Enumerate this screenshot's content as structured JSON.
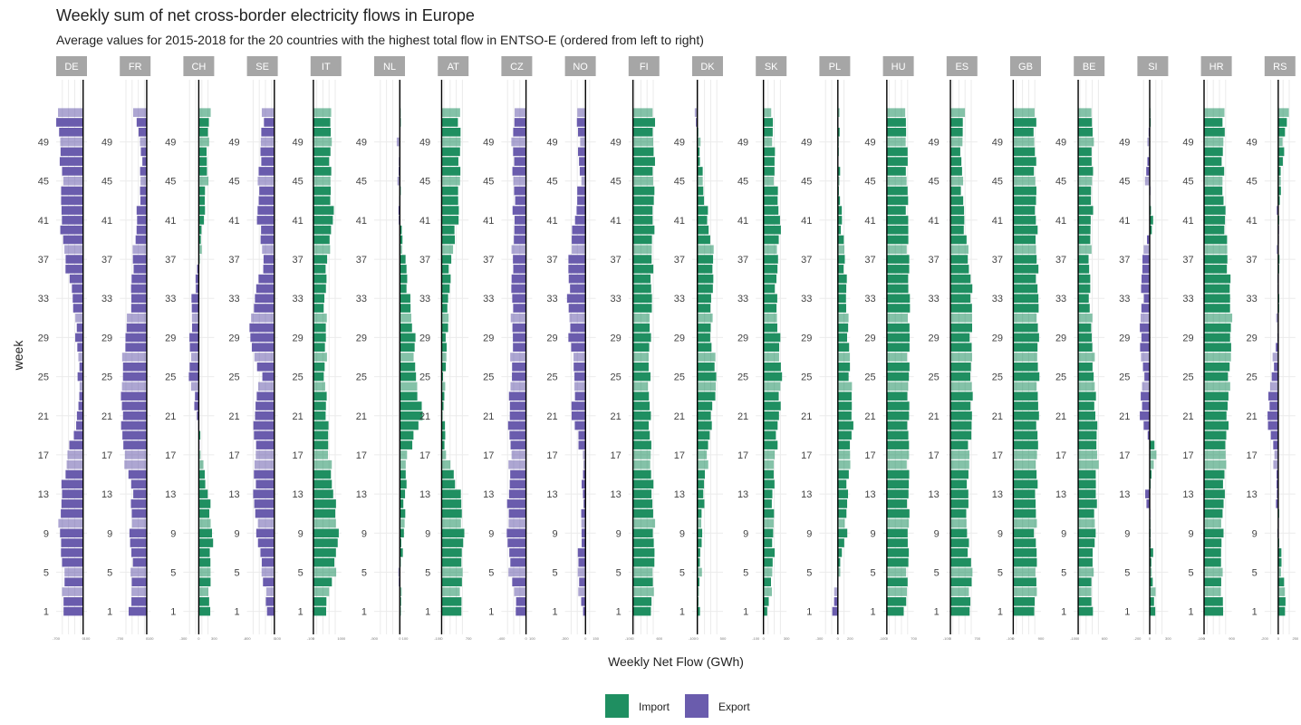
{
  "chart_data": {
    "type": "bar",
    "orientation": "horizontal",
    "title": "Weekly sum of net cross-border electricity flows in Europe",
    "subtitle": "Average values for 2015-2018 for the 20 countries with the highest total flow in ENTSO-E (ordered from left to right)",
    "xlabel": "Weekly Net Flow (GWh)",
    "ylabel": "week",
    "y_ticks": [
      1,
      5,
      9,
      13,
      17,
      21,
      25,
      29,
      33,
      37,
      41,
      45,
      49
    ],
    "weeks": [
      1,
      53
    ],
    "legend": [
      {
        "name": "Import",
        "color": "#1f8f61"
      },
      {
        "name": "Export",
        "color": "#6a5cad"
      }
    ],
    "legend_position": "bottom",
    "grid": true,
    "panels": [
      {
        "label": "DE",
        "xlim": [
          -700,
          100
        ],
        "profile": [
          [
            1,
            -520
          ],
          [
            5,
            -500
          ],
          [
            9,
            -620
          ],
          [
            13,
            -560
          ],
          [
            17,
            -400
          ],
          [
            21,
            -130
          ],
          [
            25,
            -100
          ],
          [
            29,
            -170
          ],
          [
            33,
            -260
          ],
          [
            37,
            -470
          ],
          [
            41,
            -580
          ],
          [
            45,
            -540
          ],
          [
            49,
            -610
          ],
          [
            52,
            -680
          ]
        ]
      },
      {
        "label": "FR",
        "xlim": [
          -700,
          100
        ],
        "profile": [
          [
            1,
            -430
          ],
          [
            5,
            -380
          ],
          [
            9,
            -430
          ],
          [
            13,
            -360
          ],
          [
            17,
            -600
          ],
          [
            21,
            -650
          ],
          [
            25,
            -640
          ],
          [
            29,
            -560
          ],
          [
            33,
            -400
          ],
          [
            37,
            -360
          ],
          [
            41,
            -250
          ],
          [
            45,
            -150
          ],
          [
            49,
            -150
          ],
          [
            52,
            -350
          ]
        ]
      },
      {
        "label": "CH",
        "xlim": [
          -300,
          300
        ],
        "profile": [
          [
            1,
            200
          ],
          [
            5,
            220
          ],
          [
            9,
            260
          ],
          [
            13,
            180
          ],
          [
            17,
            40
          ],
          [
            21,
            -30
          ],
          [
            25,
            -180
          ],
          [
            29,
            -160
          ],
          [
            33,
            -120
          ],
          [
            37,
            10
          ],
          [
            41,
            90
          ],
          [
            45,
            160
          ],
          [
            49,
            170
          ],
          [
            52,
            230
          ]
        ]
      },
      {
        "label": "SE",
        "xlim": [
          -800,
          100
        ],
        "profile": [
          [
            1,
            -200
          ],
          [
            5,
            -350
          ],
          [
            9,
            -500
          ],
          [
            13,
            -600
          ],
          [
            17,
            -550
          ],
          [
            21,
            -600
          ],
          [
            25,
            -400
          ],
          [
            29,
            -740
          ],
          [
            33,
            -580
          ],
          [
            37,
            -300
          ],
          [
            41,
            -480
          ],
          [
            45,
            -460
          ],
          [
            49,
            -380
          ],
          [
            52,
            -340
          ]
        ]
      },
      {
        "label": "IT",
        "xlim": [
          -100,
          1000
        ],
        "profile": [
          [
            1,
            400
          ],
          [
            5,
            760
          ],
          [
            9,
            880
          ],
          [
            13,
            720
          ],
          [
            17,
            560
          ],
          [
            21,
            480
          ],
          [
            25,
            400
          ],
          [
            29,
            460
          ],
          [
            33,
            400
          ],
          [
            37,
            500
          ],
          [
            41,
            700
          ],
          [
            45,
            600
          ],
          [
            49,
            620
          ],
          [
            52,
            640
          ]
        ]
      },
      {
        "label": "NL",
        "xlim": [
          -500,
          100
        ],
        "profile": [
          [
            1,
            40
          ],
          [
            5,
            -20
          ],
          [
            9,
            80
          ],
          [
            13,
            100
          ],
          [
            17,
            140
          ],
          [
            21,
            440
          ],
          [
            25,
            300
          ],
          [
            29,
            280
          ],
          [
            33,
            180
          ],
          [
            37,
            100
          ],
          [
            41,
            -10
          ],
          [
            45,
            -20
          ],
          [
            49,
            -30
          ],
          [
            52,
            20
          ]
        ]
      },
      {
        "label": "AT",
        "xlim": [
          -100,
          700
        ],
        "profile": [
          [
            1,
            500
          ],
          [
            5,
            520
          ],
          [
            9,
            560
          ],
          [
            13,
            480
          ],
          [
            17,
            120
          ],
          [
            21,
            40
          ],
          [
            25,
            80
          ],
          [
            29,
            140
          ],
          [
            33,
            180
          ],
          [
            37,
            240
          ],
          [
            41,
            420
          ],
          [
            45,
            460
          ],
          [
            49,
            480
          ],
          [
            52,
            460
          ]
        ]
      },
      {
        "label": "CZ",
        "xlim": [
          -400,
          100
        ],
        "profile": [
          [
            1,
            -140
          ],
          [
            5,
            -260
          ],
          [
            9,
            -300
          ],
          [
            13,
            -280
          ],
          [
            17,
            -250
          ],
          [
            21,
            -280
          ],
          [
            25,
            -240
          ],
          [
            29,
            -220
          ],
          [
            33,
            -230
          ],
          [
            37,
            -220
          ],
          [
            41,
            -190
          ],
          [
            45,
            -200
          ],
          [
            49,
            -220
          ],
          [
            52,
            -190
          ]
        ]
      },
      {
        "label": "NO",
        "xlim": [
          -300,
          150
        ],
        "profile": [
          [
            1,
            -50
          ],
          [
            5,
            -120
          ],
          [
            9,
            -60
          ],
          [
            13,
            -40
          ],
          [
            17,
            -40
          ],
          [
            21,
            -200
          ],
          [
            25,
            -150
          ],
          [
            29,
            -230
          ],
          [
            33,
            -250
          ],
          [
            37,
            -240
          ],
          [
            41,
            -160
          ],
          [
            45,
            -80
          ],
          [
            49,
            -100
          ],
          [
            52,
            -120
          ]
        ]
      },
      {
        "label": "FI",
        "xlim": [
          -100,
          600
        ],
        "profile": [
          [
            1,
            420
          ],
          [
            5,
            470
          ],
          [
            9,
            480
          ],
          [
            13,
            440
          ],
          [
            17,
            400
          ],
          [
            21,
            380
          ],
          [
            25,
            360
          ],
          [
            29,
            380
          ],
          [
            33,
            420
          ],
          [
            37,
            430
          ],
          [
            41,
            460
          ],
          [
            45,
            470
          ],
          [
            49,
            470
          ],
          [
            52,
            460
          ]
        ]
      },
      {
        "label": "DK",
        "xlim": [
          -100,
          500
        ],
        "profile": [
          [
            1,
            20
          ],
          [
            5,
            60
          ],
          [
            9,
            80
          ],
          [
            13,
            120
          ],
          [
            17,
            200
          ],
          [
            21,
            280
          ],
          [
            25,
            380
          ],
          [
            29,
            260
          ],
          [
            33,
            280
          ],
          [
            37,
            320
          ],
          [
            41,
            200
          ],
          [
            45,
            100
          ],
          [
            49,
            40
          ],
          [
            52,
            -40
          ]
        ]
      },
      {
        "label": "SK",
        "xlim": [
          -100,
          300
        ],
        "profile": [
          [
            1,
            60
          ],
          [
            5,
            120
          ],
          [
            9,
            130
          ],
          [
            13,
            120
          ],
          [
            17,
            150
          ],
          [
            21,
            200
          ],
          [
            25,
            230
          ],
          [
            29,
            200
          ],
          [
            33,
            160
          ],
          [
            37,
            180
          ],
          [
            41,
            220
          ],
          [
            45,
            150
          ],
          [
            49,
            130
          ],
          [
            52,
            100
          ]
        ]
      },
      {
        "label": "PL",
        "xlim": [
          -300,
          200
        ],
        "profile": [
          [
            1,
            -100
          ],
          [
            5,
            20
          ],
          [
            9,
            130
          ],
          [
            13,
            150
          ],
          [
            17,
            200
          ],
          [
            21,
            240
          ],
          [
            25,
            200
          ],
          [
            29,
            170
          ],
          [
            33,
            140
          ],
          [
            37,
            110
          ],
          [
            41,
            60
          ],
          [
            45,
            20
          ],
          [
            49,
            10
          ],
          [
            52,
            20
          ]
        ]
      },
      {
        "label": "HU",
        "xlim": [
          -100,
          700
        ],
        "profile": [
          [
            1,
            480
          ],
          [
            5,
            540
          ],
          [
            9,
            560
          ],
          [
            13,
            560
          ],
          [
            17,
            560
          ],
          [
            21,
            560
          ],
          [
            25,
            560
          ],
          [
            29,
            580
          ],
          [
            33,
            580
          ],
          [
            37,
            560
          ],
          [
            41,
            540
          ],
          [
            45,
            520
          ],
          [
            49,
            520
          ],
          [
            52,
            460
          ]
        ]
      },
      {
        "label": "ES",
        "xlim": [
          -100,
          700
        ],
        "profile": [
          [
            1,
            480
          ],
          [
            5,
            560
          ],
          [
            9,
            420
          ],
          [
            13,
            450
          ],
          [
            17,
            480
          ],
          [
            21,
            560
          ],
          [
            25,
            540
          ],
          [
            29,
            540
          ],
          [
            33,
            560
          ],
          [
            37,
            470
          ],
          [
            41,
            350
          ],
          [
            45,
            300
          ],
          [
            49,
            280
          ],
          [
            52,
            380
          ]
        ]
      },
      {
        "label": "GB",
        "xlim": [
          -100,
          900
        ],
        "profile": [
          [
            1,
            700
          ],
          [
            5,
            760
          ],
          [
            9,
            720
          ],
          [
            13,
            740
          ],
          [
            17,
            770
          ],
          [
            21,
            800
          ],
          [
            25,
            800
          ],
          [
            29,
            800
          ],
          [
            33,
            800
          ],
          [
            37,
            760
          ],
          [
            41,
            740
          ],
          [
            45,
            720
          ],
          [
            49,
            690
          ],
          [
            52,
            700
          ]
        ]
      },
      {
        "label": "BE",
        "xlim": [
          -100,
          600
        ],
        "profile": [
          [
            1,
            300
          ],
          [
            5,
            320
          ],
          [
            9,
            380
          ],
          [
            13,
            400
          ],
          [
            17,
            440
          ],
          [
            21,
            400
          ],
          [
            25,
            360
          ],
          [
            29,
            320
          ],
          [
            33,
            260
          ],
          [
            37,
            260
          ],
          [
            41,
            300
          ],
          [
            45,
            310
          ],
          [
            49,
            330
          ],
          [
            52,
            320
          ]
        ]
      },
      {
        "label": "SI",
        "xlim": [
          -200,
          300
        ],
        "profile": [
          [
            1,
            100
          ],
          [
            5,
            40
          ],
          [
            9,
            20
          ],
          [
            13,
            -60
          ],
          [
            17,
            120
          ],
          [
            21,
            -160
          ],
          [
            25,
            -100
          ],
          [
            29,
            -160
          ],
          [
            33,
            -120
          ],
          [
            37,
            -130
          ],
          [
            41,
            60
          ],
          [
            45,
            -60
          ],
          [
            49,
            -20
          ],
          [
            52,
            10
          ]
        ]
      },
      {
        "label": "HR",
        "xlim": [
          -100,
          900
        ],
        "profile": [
          [
            1,
            600
          ],
          [
            5,
            560
          ],
          [
            9,
            580
          ],
          [
            13,
            640
          ],
          [
            17,
            700
          ],
          [
            21,
            760
          ],
          [
            25,
            820
          ],
          [
            29,
            880
          ],
          [
            33,
            860
          ],
          [
            37,
            760
          ],
          [
            41,
            680
          ],
          [
            45,
            600
          ],
          [
            49,
            620
          ],
          [
            52,
            660
          ]
        ]
      },
      {
        "label": "RS",
        "xlim": [
          -200,
          250
        ],
        "profile": [
          [
            1,
            120
          ],
          [
            5,
            60
          ],
          [
            9,
            0
          ],
          [
            13,
            -20
          ],
          [
            17,
            -60
          ],
          [
            21,
            -160
          ],
          [
            25,
            -100
          ],
          [
            29,
            -20
          ],
          [
            33,
            0
          ],
          [
            37,
            0
          ],
          [
            41,
            -10
          ],
          [
            45,
            40
          ],
          [
            49,
            80
          ],
          [
            52,
            140
          ]
        ]
      }
    ]
  }
}
